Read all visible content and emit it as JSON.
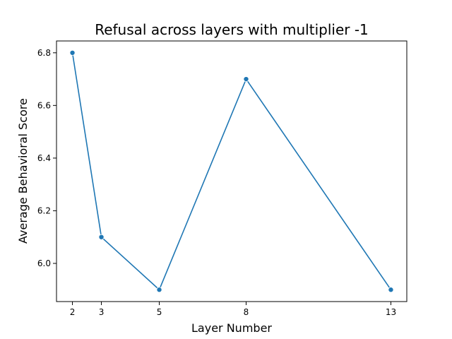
{
  "chart_data": {
    "type": "line",
    "title": "Refusal across layers with multiplier -1",
    "xlabel": "Layer Number",
    "ylabel": "Average Behavioral Score",
    "x": [
      2,
      3,
      5,
      8,
      13
    ],
    "y": [
      6.8,
      6.1,
      5.9,
      6.7,
      5.9
    ],
    "xlim": [
      1.45,
      13.55
    ],
    "ylim": [
      5.855,
      6.845
    ],
    "xticks": [
      "2",
      "3",
      "5",
      "8",
      "13"
    ],
    "yticks": [
      "6.0",
      "6.2",
      "6.4",
      "6.6",
      "6.8"
    ],
    "grid": false,
    "line_color": "#1f77b4"
  }
}
